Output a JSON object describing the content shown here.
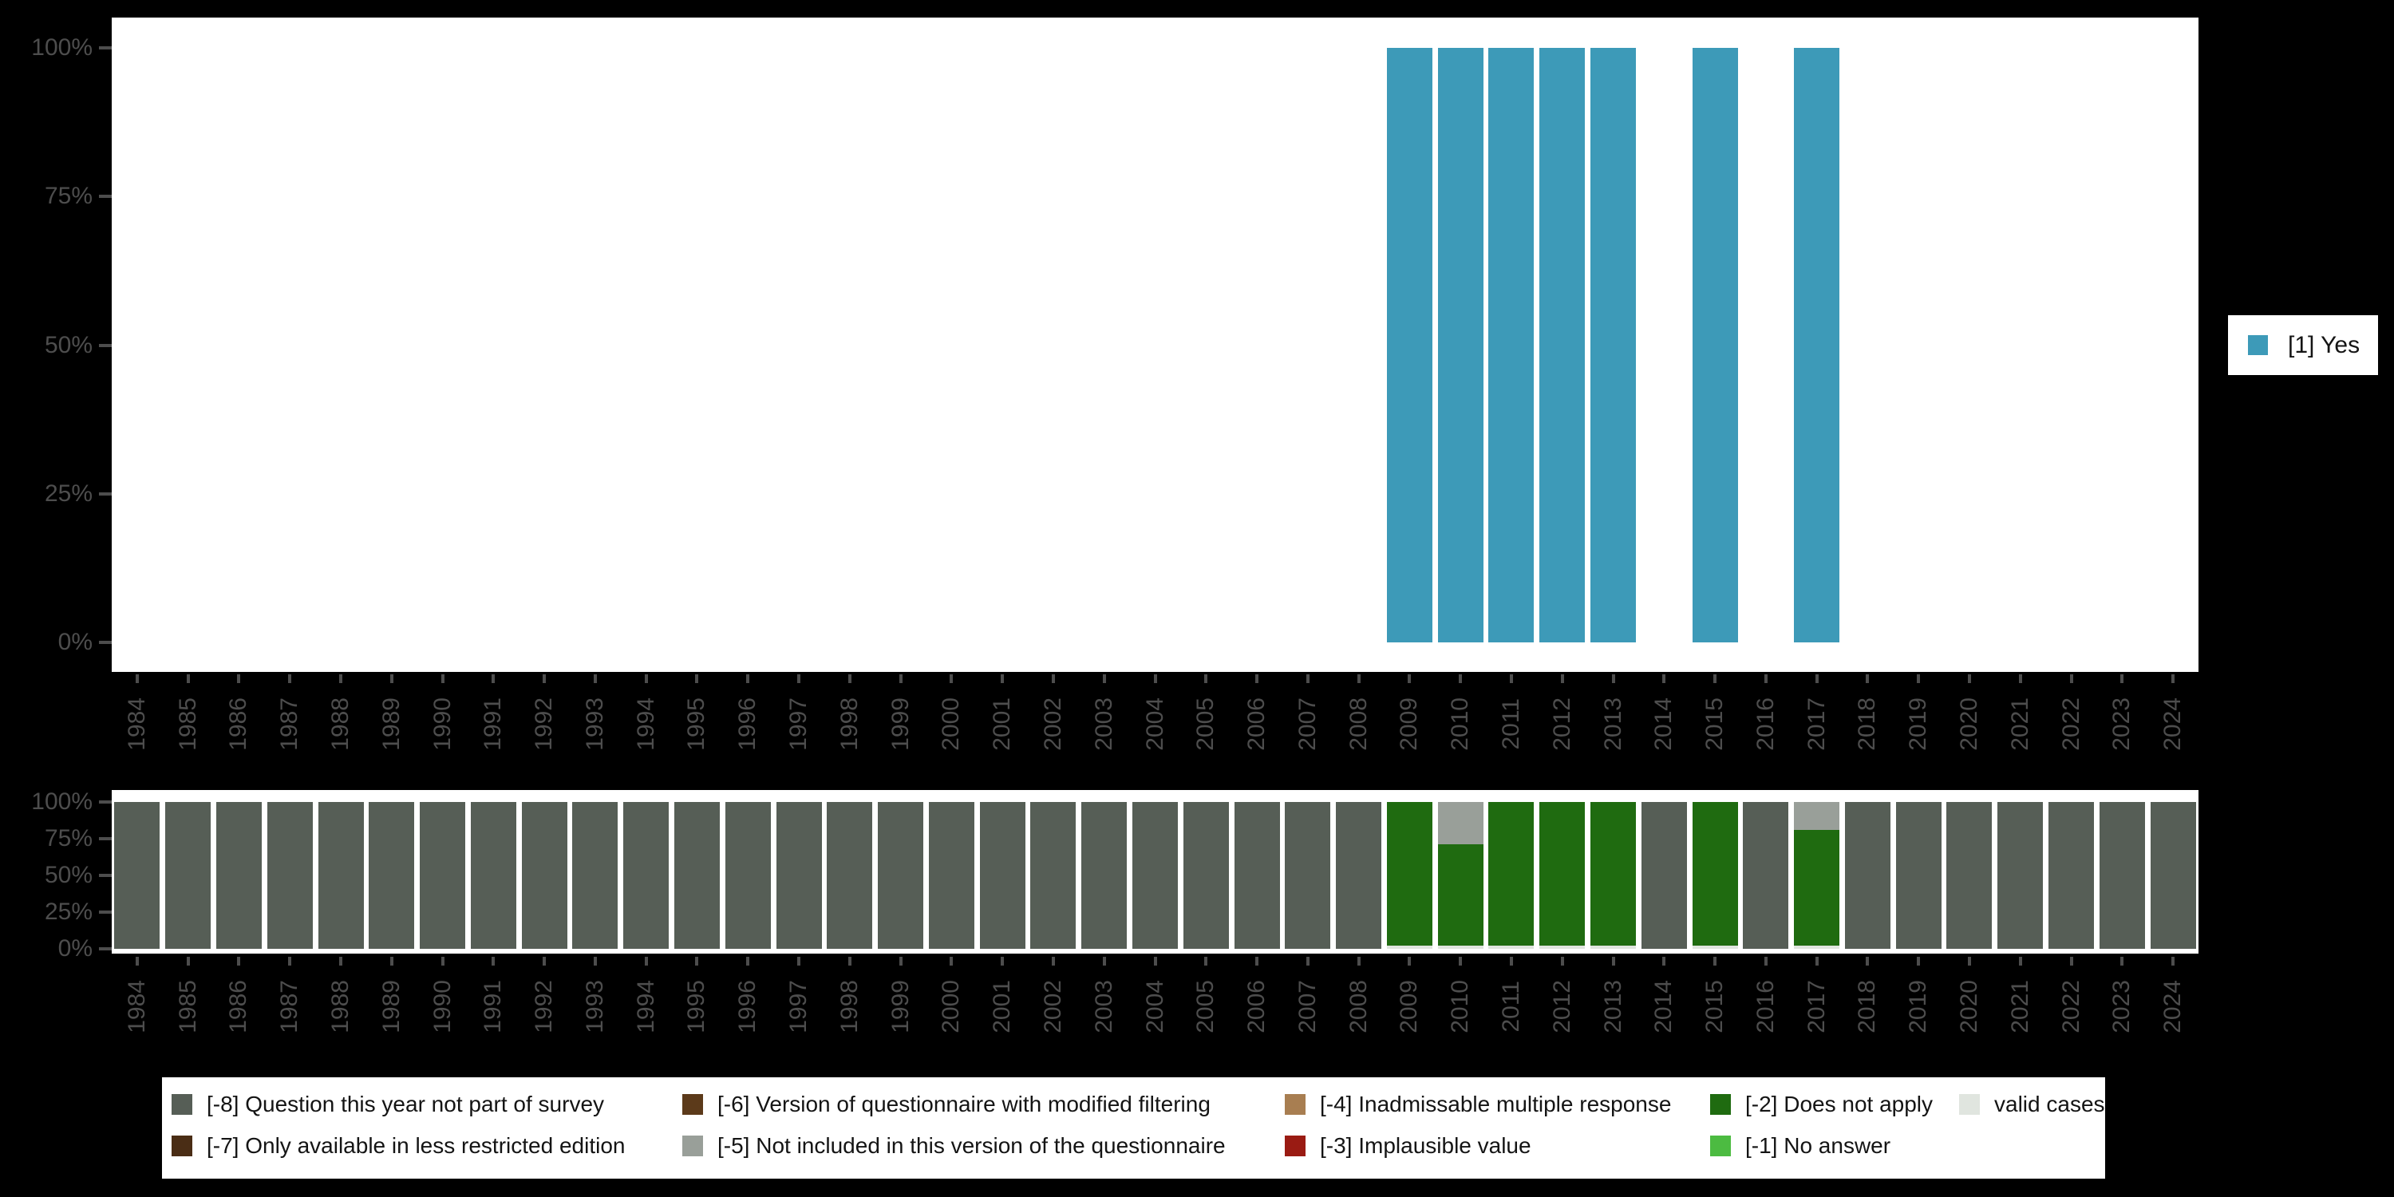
{
  "page": {
    "background": "#000000"
  },
  "years": [
    1984,
    1985,
    1986,
    1987,
    1988,
    1989,
    1990,
    1991,
    1992,
    1993,
    1994,
    1995,
    1996,
    1997,
    1998,
    1999,
    2000,
    2001,
    2002,
    2003,
    2004,
    2005,
    2006,
    2007,
    2008,
    2009,
    2010,
    2011,
    2012,
    2013,
    2014,
    2015,
    2016,
    2017,
    2018,
    2019,
    2020,
    2021,
    2022,
    2023,
    2024
  ],
  "yticks": [
    "0%",
    "25%",
    "50%",
    "75%",
    "100%"
  ],
  "top_legend": {
    "label": "[1] Yes",
    "color": "#3d9ab8"
  },
  "missing_legend": {
    "items": [
      {
        "label": "[-8] Question this year not part of survey",
        "color": "#565e56"
      },
      {
        "label": "[-7] Only available in less restricted edition",
        "color": "#4a2d15"
      },
      {
        "label": "[-6] Version of questionnaire with modified filtering",
        "color": "#5c3a1a"
      },
      {
        "label": "[-5] Not included in this version of the questionnaire",
        "color": "#999f99"
      },
      {
        "label": "[-4] Inadmissable multiple response",
        "color": "#a87e51"
      },
      {
        "label": "[-3] Implausible value",
        "color": "#9a1b13"
      },
      {
        "label": "[-2] Does not apply",
        "color": "#1f6b10"
      },
      {
        "label": "[-1] No answer",
        "color": "#4cbb41"
      },
      {
        "label": "valid cases",
        "color": "#e0e5df"
      }
    ]
  },
  "chart_data": [
    {
      "type": "bar",
      "title": "",
      "x": [
        1984,
        1985,
        1986,
        1987,
        1988,
        1989,
        1990,
        1991,
        1992,
        1993,
        1994,
        1995,
        1996,
        1997,
        1998,
        1999,
        2000,
        2001,
        2002,
        2003,
        2004,
        2005,
        2006,
        2007,
        2008,
        2009,
        2010,
        2011,
        2012,
        2013,
        2014,
        2015,
        2016,
        2017,
        2018,
        2019,
        2020,
        2021,
        2022,
        2023,
        2024
      ],
      "series": [
        {
          "name": "[1] Yes",
          "color": "#3d9ab8",
          "values": [
            0,
            0,
            0,
            0,
            0,
            0,
            0,
            0,
            0,
            0,
            0,
            0,
            0,
            0,
            0,
            0,
            0,
            0,
            0,
            0,
            0,
            0,
            0,
            0,
            0,
            100,
            100,
            100,
            100,
            100,
            0,
            100,
            0,
            100,
            0,
            0,
            0,
            0,
            0,
            0,
            0
          ]
        }
      ],
      "ylim": [
        0,
        100
      ],
      "yticks": [
        "0%",
        "25%",
        "50%",
        "75%",
        "100%"
      ],
      "legend_position": "right",
      "grid": false
    },
    {
      "type": "stacked-bar",
      "title": "",
      "x": [
        1984,
        1985,
        1986,
        1987,
        1988,
        1989,
        1990,
        1991,
        1992,
        1993,
        1994,
        1995,
        1996,
        1997,
        1998,
        1999,
        2000,
        2001,
        2002,
        2003,
        2004,
        2005,
        2006,
        2007,
        2008,
        2009,
        2010,
        2011,
        2012,
        2013,
        2014,
        2015,
        2016,
        2017,
        2018,
        2019,
        2020,
        2021,
        2022,
        2023,
        2024
      ],
      "series": [
        {
          "name": "valid cases",
          "color": "#e0e5df",
          "values": [
            0,
            0,
            0,
            0,
            0,
            0,
            0,
            0,
            0,
            0,
            0,
            0,
            0,
            0,
            0,
            0,
            0,
            0,
            0,
            0,
            0,
            0,
            0,
            0,
            0,
            2,
            2,
            2,
            2,
            2,
            0,
            2,
            0,
            2,
            0,
            0,
            0,
            0,
            0,
            0,
            0
          ]
        },
        {
          "name": "[-2] Does not apply",
          "color": "#1f6b10",
          "values": [
            0,
            0,
            0,
            0,
            0,
            0,
            0,
            0,
            0,
            0,
            0,
            0,
            0,
            0,
            0,
            0,
            0,
            0,
            0,
            0,
            0,
            0,
            0,
            0,
            0,
            98,
            69,
            98,
            98,
            98,
            0,
            98,
            0,
            79,
            0,
            0,
            0,
            0,
            0,
            0,
            0
          ]
        },
        {
          "name": "[-5] Not included in this version of the questionnaire",
          "color": "#999f99",
          "values": [
            0,
            0,
            0,
            0,
            0,
            0,
            0,
            0,
            0,
            0,
            0,
            0,
            0,
            0,
            0,
            0,
            0,
            0,
            0,
            0,
            0,
            0,
            0,
            0,
            0,
            0,
            29,
            0,
            0,
            0,
            0,
            0,
            0,
            19,
            0,
            0,
            0,
            0,
            0,
            0,
            0
          ]
        },
        {
          "name": "[-8] Question this year not part of survey",
          "color": "#565e56",
          "values": [
            100,
            100,
            100,
            100,
            100,
            100,
            100,
            100,
            100,
            100,
            100,
            100,
            100,
            100,
            100,
            100,
            100,
            100,
            100,
            100,
            100,
            100,
            100,
            100,
            100,
            0,
            0,
            0,
            0,
            0,
            100,
            0,
            100,
            0,
            100,
            100,
            100,
            100,
            100,
            100,
            100
          ]
        }
      ],
      "ylim": [
        0,
        100
      ],
      "yticks": [
        "0%",
        "25%",
        "50%",
        "75%",
        "100%"
      ],
      "legend_position": "bottom",
      "grid": false
    }
  ]
}
